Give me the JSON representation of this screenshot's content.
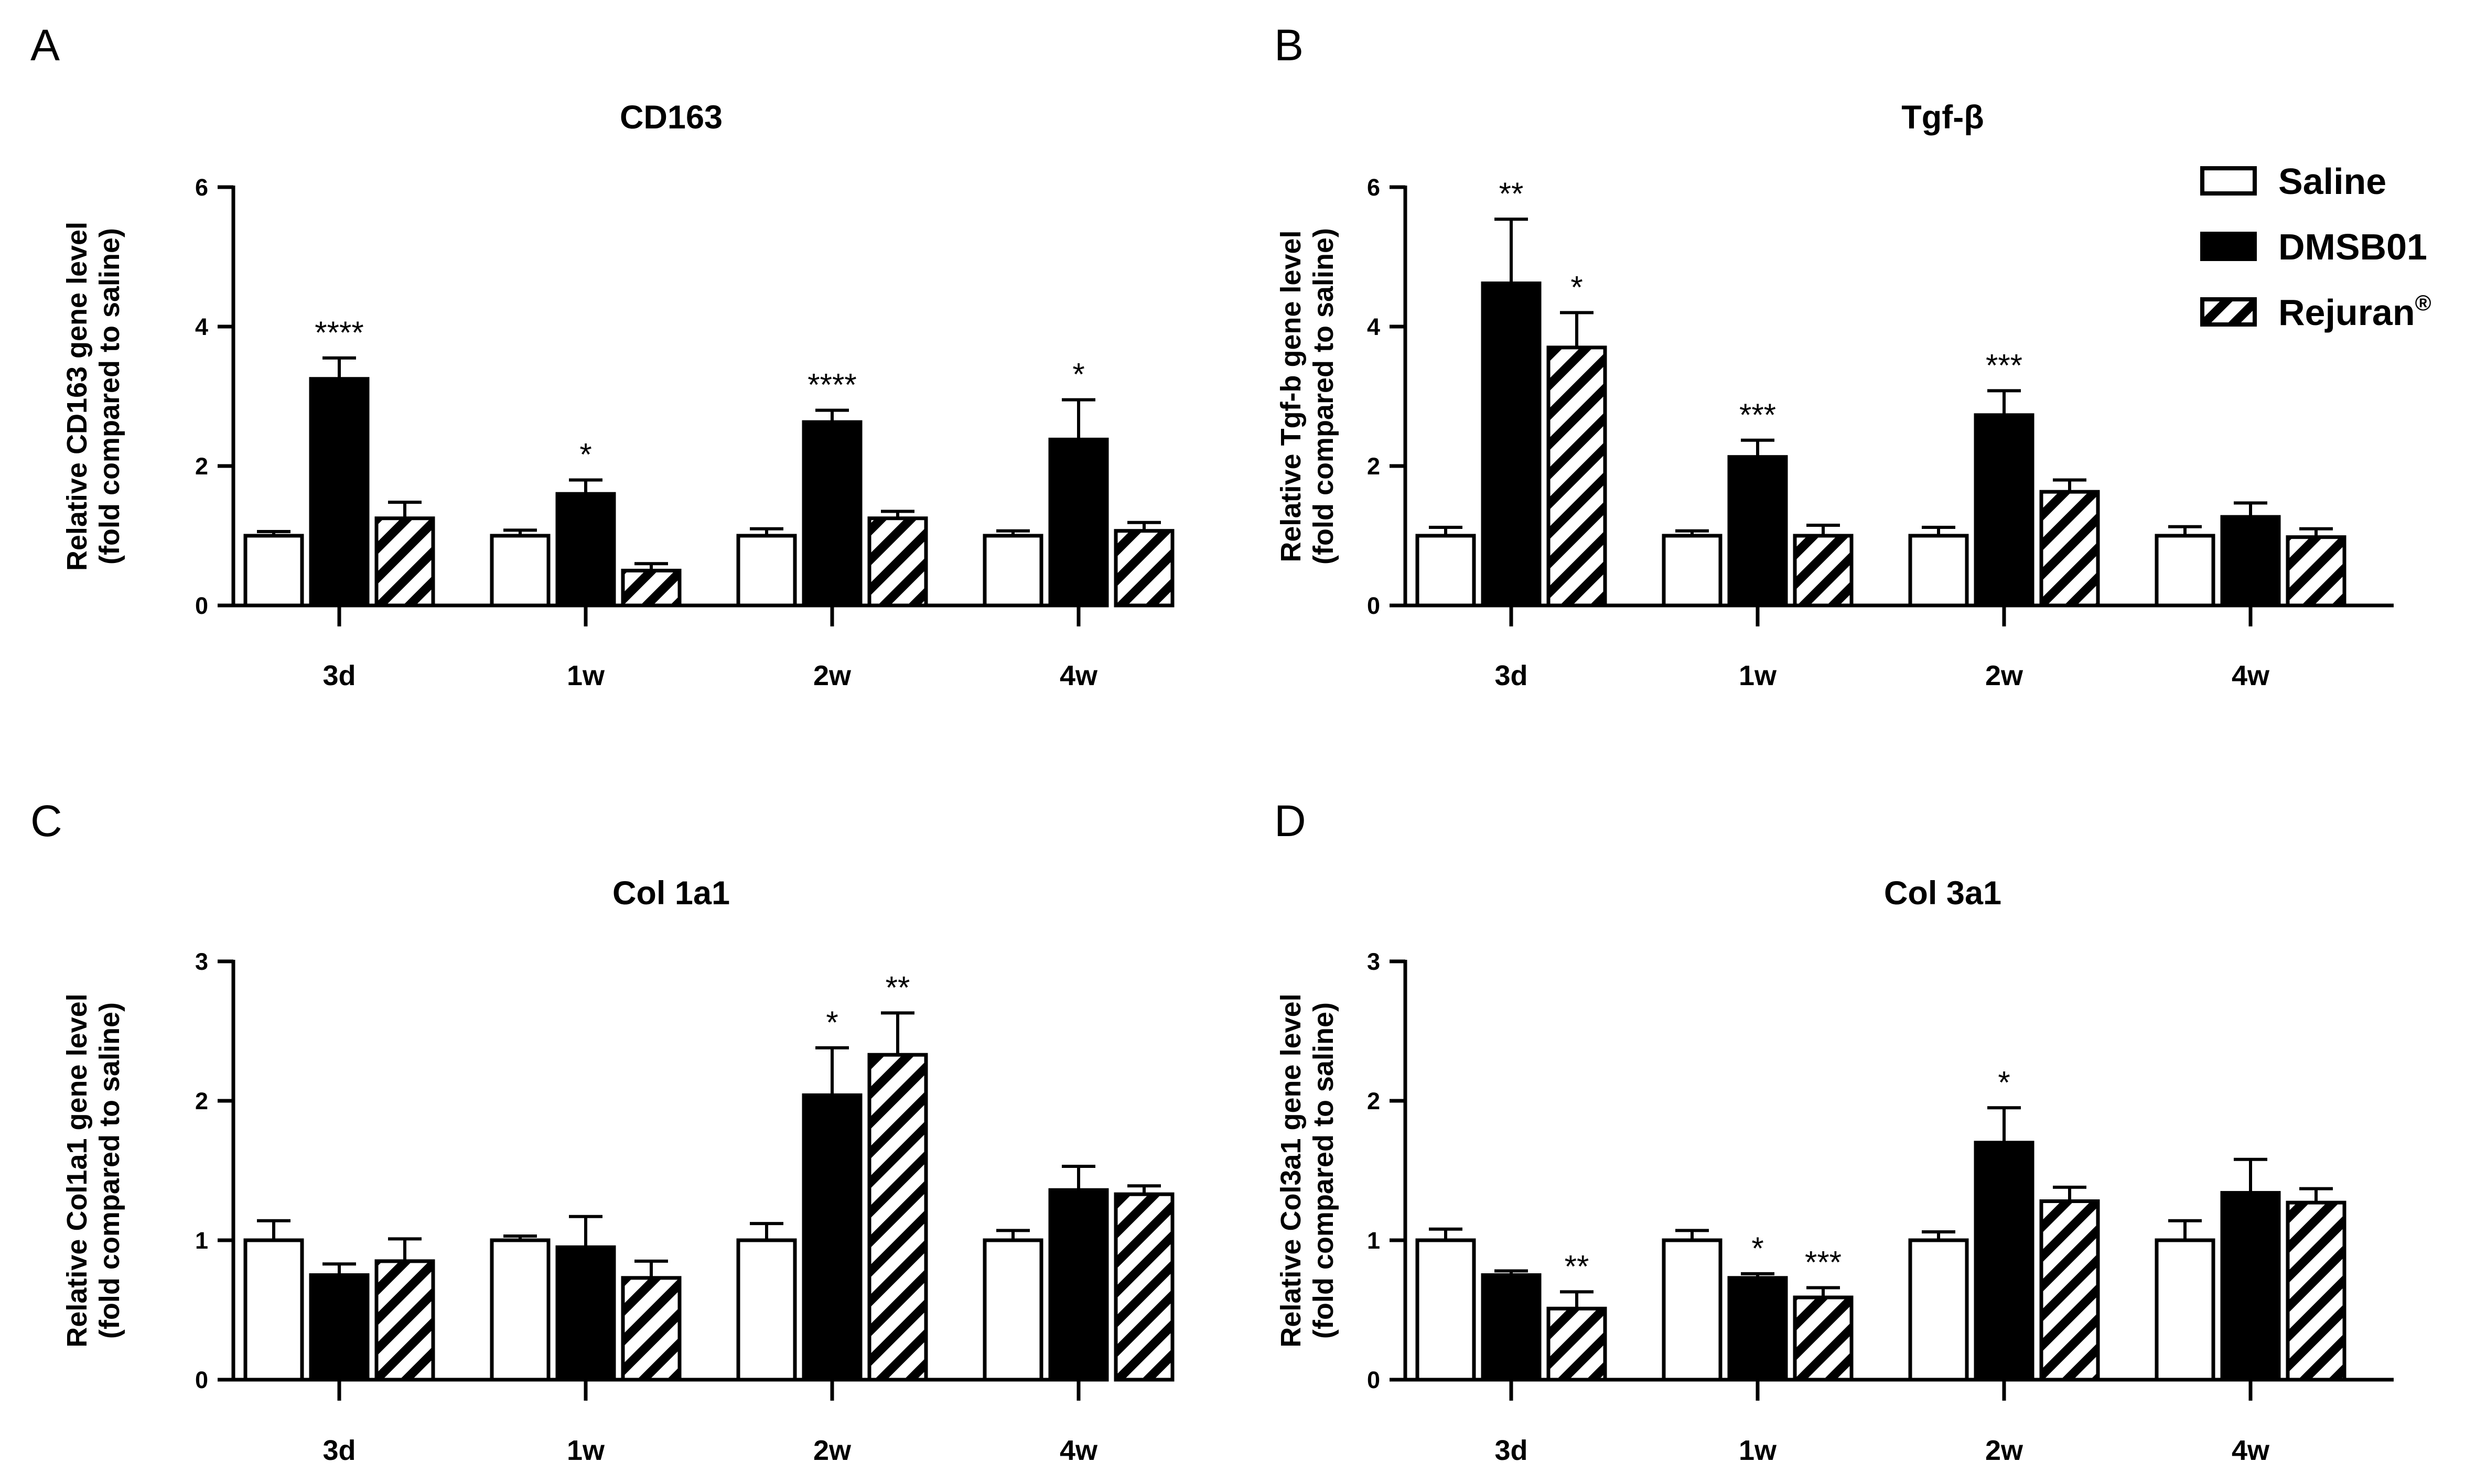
{
  "colors": {
    "saline": "#ffffff",
    "dmsb01": "#000000",
    "rejuran_hatch": "#000000",
    "axis": "#000000"
  },
  "legend": {
    "entries": [
      "Saline",
      "DMSB01",
      "Rejuran"
    ],
    "rejuran_mark": "®",
    "placement": "top-right"
  },
  "chart_data": [
    {
      "panel": "A",
      "type": "bar",
      "title": "CD163",
      "ylabel_line1": "Relative CD163 gene level",
      "ylabel_line2": "(fold compared to saline)",
      "ylim": [
        0,
        6
      ],
      "yticks": [
        0,
        2,
        4,
        6
      ],
      "categories": [
        "3d",
        "1w",
        "2w",
        "4w"
      ],
      "series": [
        {
          "name": "Saline",
          "values": [
            1.0,
            1.0,
            1.0,
            1.0
          ],
          "errors": [
            0.06,
            0.08,
            0.1,
            0.07
          ],
          "stars": [
            "",
            "",
            "",
            ""
          ]
        },
        {
          "name": "DMSB01",
          "values": [
            3.25,
            1.6,
            2.63,
            2.38
          ],
          "errors": [
            0.3,
            0.2,
            0.17,
            0.57
          ],
          "stars": [
            "****",
            "*",
            "****",
            "*"
          ]
        },
        {
          "name": "Rejuran",
          "values": [
            1.25,
            0.5,
            1.25,
            1.07
          ],
          "errors": [
            0.23,
            0.1,
            0.1,
            0.12
          ],
          "stars": [
            "",
            "",
            "",
            ""
          ]
        }
      ]
    },
    {
      "panel": "B",
      "type": "bar",
      "title": "Tgf-β",
      "ylabel_line1": "Relative Tgf-b gene level",
      "ylabel_line2": "(fold compared to saline)",
      "ylim": [
        0,
        6
      ],
      "yticks": [
        0,
        2,
        4,
        6
      ],
      "categories": [
        "3d",
        "1w",
        "2w",
        "4w"
      ],
      "series": [
        {
          "name": "Saline",
          "values": [
            1.0,
            1.0,
            1.0,
            1.0
          ],
          "errors": [
            0.12,
            0.07,
            0.12,
            0.13
          ],
          "stars": [
            "",
            "",
            "",
            ""
          ]
        },
        {
          "name": "DMSB01",
          "values": [
            4.62,
            2.13,
            2.73,
            1.27
          ],
          "errors": [
            0.92,
            0.24,
            0.35,
            0.2
          ],
          "stars": [
            "**",
            "***",
            "***",
            ""
          ]
        },
        {
          "name": "Rejuran",
          "values": [
            3.7,
            1.0,
            1.63,
            0.98
          ],
          "errors": [
            0.5,
            0.15,
            0.17,
            0.12
          ],
          "stars": [
            "*",
            "",
            "",
            ""
          ]
        }
      ]
    },
    {
      "panel": "C",
      "type": "bar",
      "title": "Col 1a1",
      "ylabel_line1": "Relative Col1a1 gene level",
      "ylabel_line2": "(fold compared to saline)",
      "ylim": [
        0,
        3
      ],
      "yticks": [
        0,
        1,
        2,
        3
      ],
      "categories": [
        "3d",
        "1w",
        "2w",
        "4w"
      ],
      "series": [
        {
          "name": "Saline",
          "values": [
            1.0,
            1.0,
            1.0,
            1.0
          ],
          "errors": [
            0.14,
            0.03,
            0.12,
            0.07
          ],
          "stars": [
            "",
            "",
            "",
            ""
          ]
        },
        {
          "name": "DMSB01",
          "values": [
            0.75,
            0.95,
            2.04,
            1.36
          ],
          "errors": [
            0.08,
            0.22,
            0.34,
            0.17
          ],
          "stars": [
            "",
            "",
            "*",
            ""
          ]
        },
        {
          "name": "Rejuran",
          "values": [
            0.85,
            0.73,
            2.33,
            1.33
          ],
          "errors": [
            0.16,
            0.12,
            0.3,
            0.06
          ],
          "stars": [
            "",
            "",
            "**",
            ""
          ]
        }
      ]
    },
    {
      "panel": "D",
      "type": "bar",
      "title": "Col 3a1",
      "ylabel_line1": "Relative Col3a1 gene level",
      "ylabel_line2": "(fold compared to saline)",
      "ylim": [
        0,
        3
      ],
      "yticks": [
        0,
        1,
        2,
        3
      ],
      "categories": [
        "3d",
        "1w",
        "2w",
        "4w"
      ],
      "series": [
        {
          "name": "Saline",
          "values": [
            1.0,
            1.0,
            1.0,
            1.0
          ],
          "errors": [
            0.08,
            0.07,
            0.06,
            0.14
          ],
          "stars": [
            "",
            "",
            "",
            ""
          ]
        },
        {
          "name": "DMSB01",
          "values": [
            0.75,
            0.73,
            1.7,
            1.34
          ],
          "errors": [
            0.03,
            0.03,
            0.25,
            0.24
          ],
          "stars": [
            "",
            "*",
            "*",
            ""
          ]
        },
        {
          "name": "Rejuran",
          "values": [
            0.51,
            0.59,
            1.28,
            1.27
          ],
          "errors": [
            0.12,
            0.07,
            0.1,
            0.1
          ],
          "stars": [
            "**",
            "***",
            "",
            ""
          ]
        }
      ]
    }
  ]
}
